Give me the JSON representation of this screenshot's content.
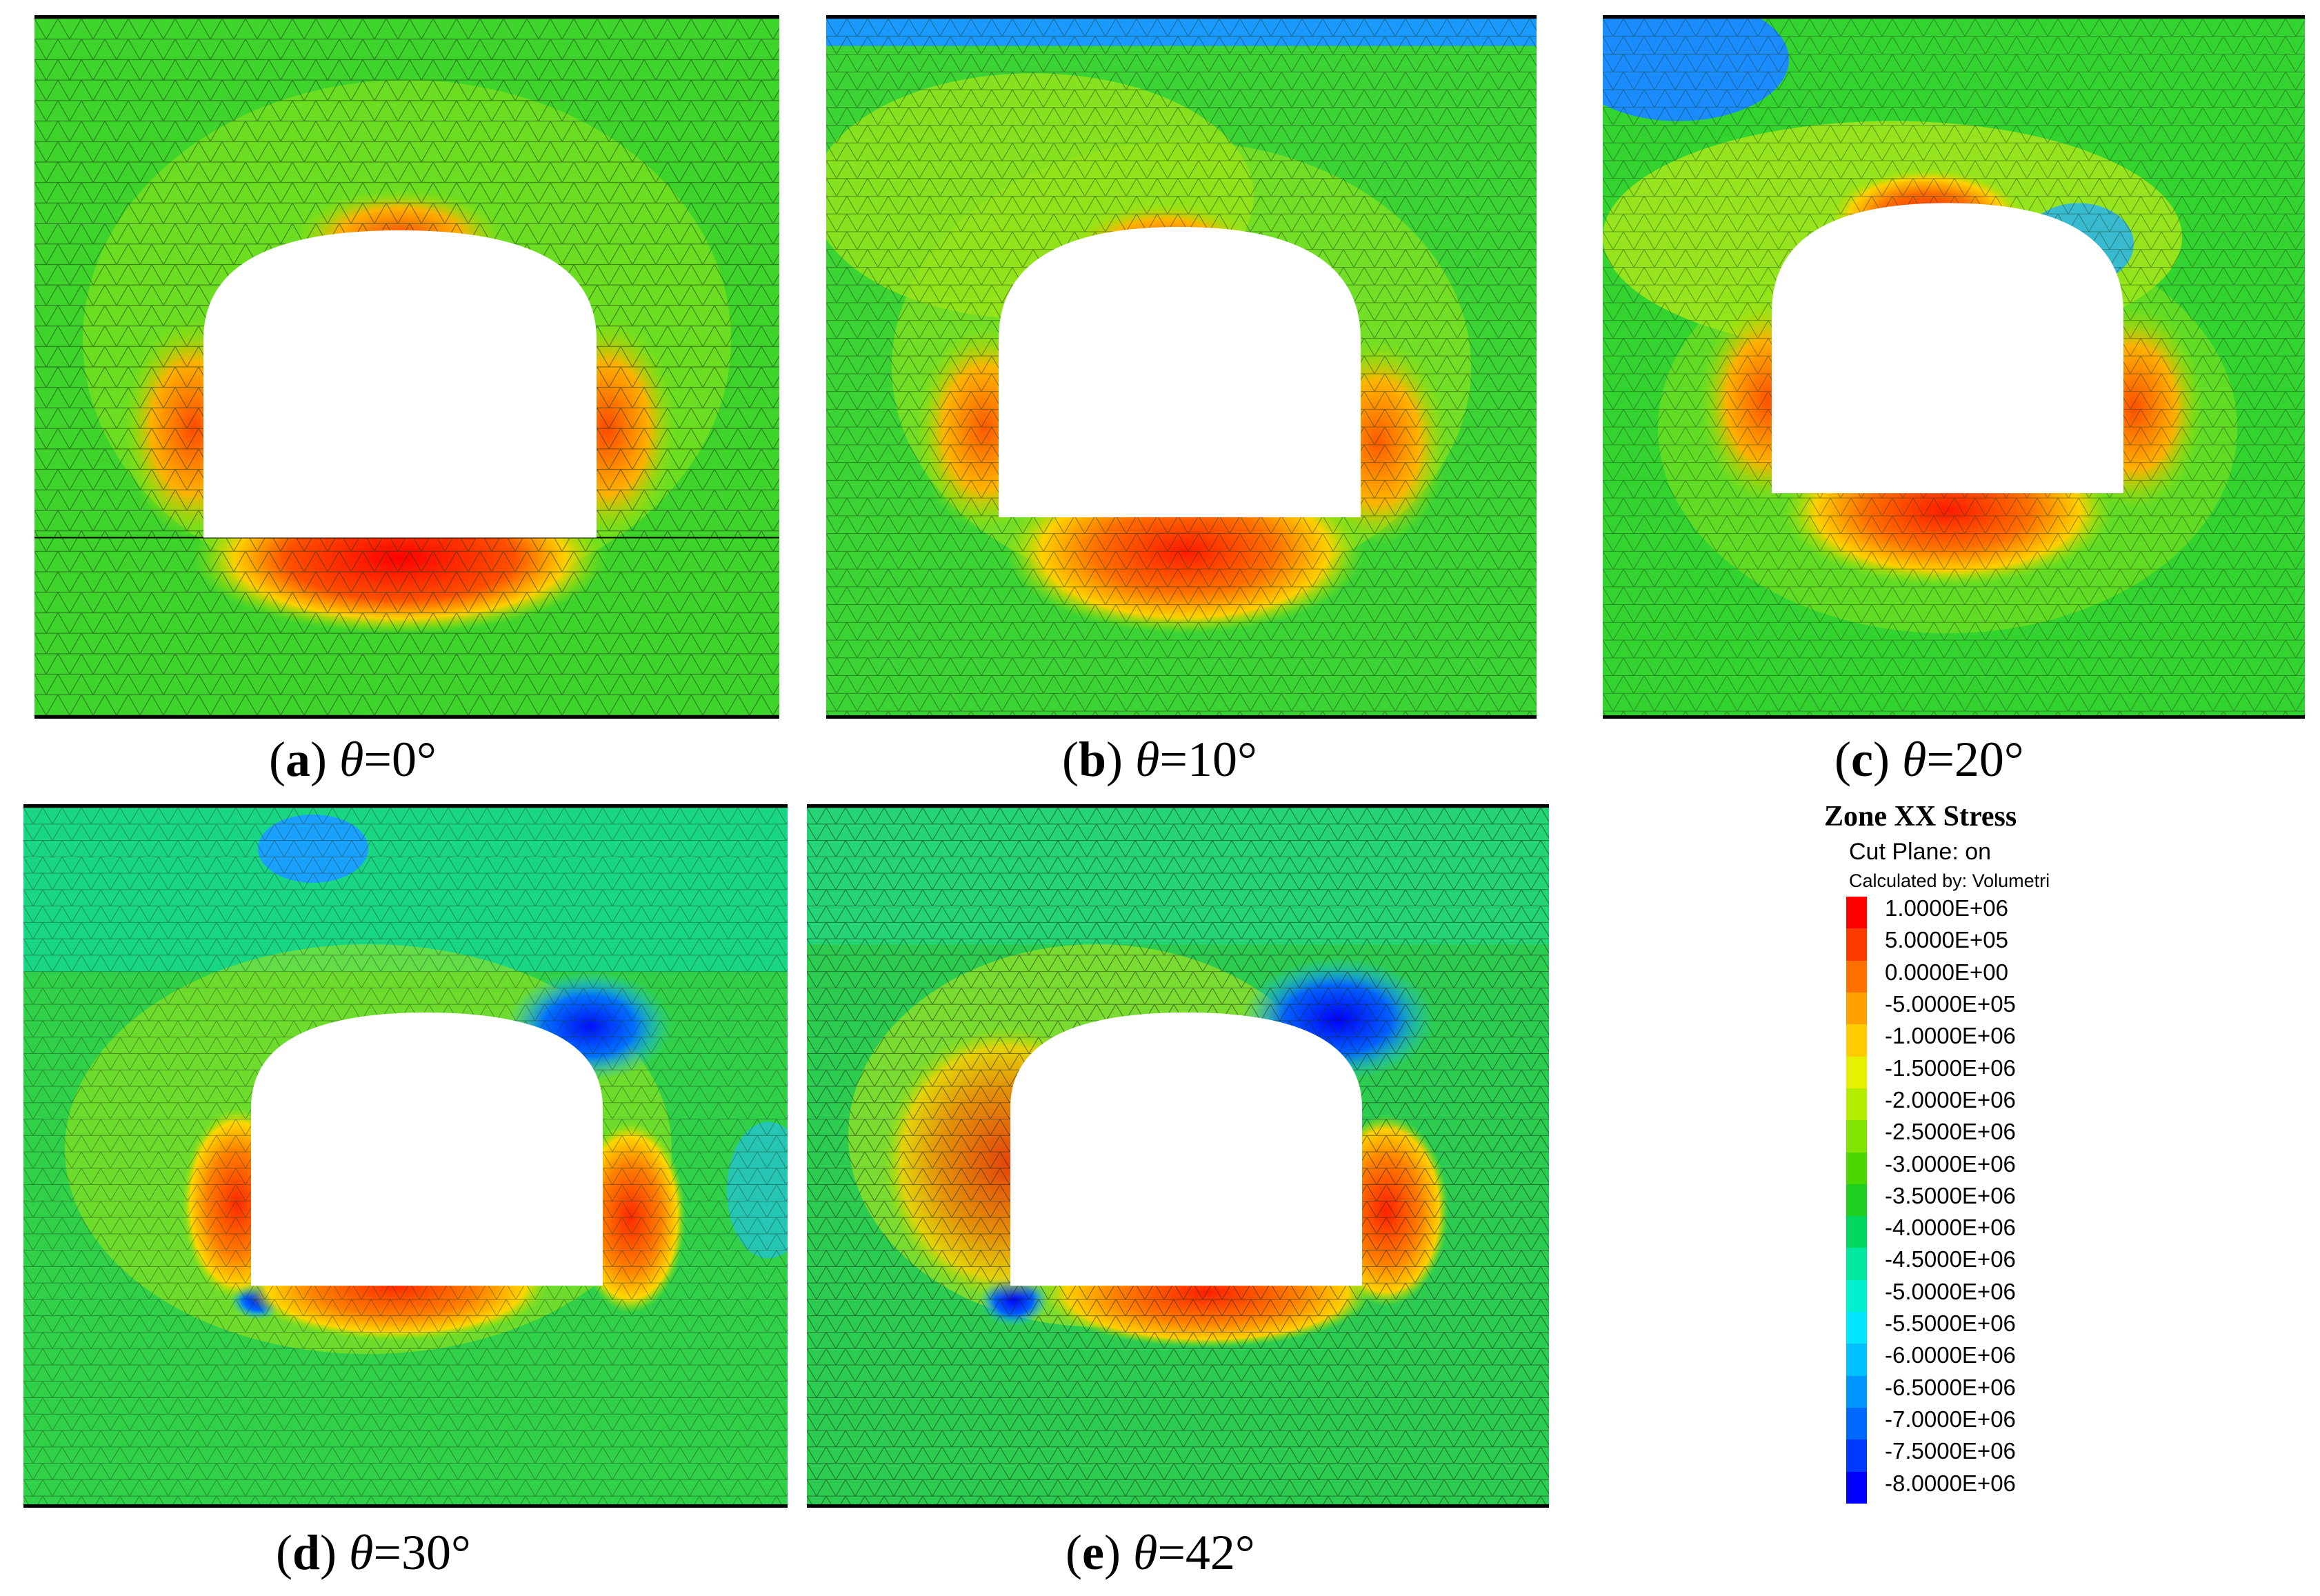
{
  "panels": [
    {
      "id": "a",
      "label": "a",
      "theta_symbol": "θ",
      "theta_value": "=0°"
    },
    {
      "id": "b",
      "label": "b",
      "theta_symbol": "θ",
      "theta_value": "=10°"
    },
    {
      "id": "c",
      "label": "c",
      "theta_symbol": "θ",
      "theta_value": "=20°"
    },
    {
      "id": "d",
      "label": "d",
      "theta_symbol": "θ",
      "theta_value": "=30°"
    },
    {
      "id": "e",
      "label": "e",
      "theta_symbol": "θ",
      "theta_value": "=42°"
    }
  ],
  "legend": {
    "title": "Zone XX Stress",
    "cut_plane": "Cut Plane: on",
    "calculated_by": "Calculated by: Volumetri",
    "levels": [
      {
        "value": "1.0000E+06",
        "color": "#ff0000"
      },
      {
        "value": "5.0000E+05",
        "color": "#ff3a00"
      },
      {
        "value": "0.0000E+00",
        "color": "#ff7000"
      },
      {
        "value": "-5.0000E+05",
        "color": "#ffa000"
      },
      {
        "value": "-1.0000E+06",
        "color": "#ffcc00"
      },
      {
        "value": "-1.5000E+06",
        "color": "#e6f000"
      },
      {
        "value": "-2.0000E+06",
        "color": "#b4ec00"
      },
      {
        "value": "-2.5000E+06",
        "color": "#80e400"
      },
      {
        "value": "-3.0000E+06",
        "color": "#4ad800"
      },
      {
        "value": "-3.5000E+06",
        "color": "#20d020"
      },
      {
        "value": "-4.0000E+06",
        "color": "#00d860"
      },
      {
        "value": "-4.5000E+06",
        "color": "#00e8a0"
      },
      {
        "value": "-5.0000E+06",
        "color": "#00f0d0"
      },
      {
        "value": "-5.5000E+06",
        "color": "#00e6ff"
      },
      {
        "value": "-6.0000E+06",
        "color": "#00c0ff"
      },
      {
        "value": "-6.5000E+06",
        "color": "#0096ff"
      },
      {
        "value": "-7.0000E+06",
        "color": "#0068ff"
      },
      {
        "value": "-7.5000E+06",
        "color": "#0038ff"
      },
      {
        "value": "-8.0000E+06",
        "color": "#0000ff"
      }
    ]
  }
}
